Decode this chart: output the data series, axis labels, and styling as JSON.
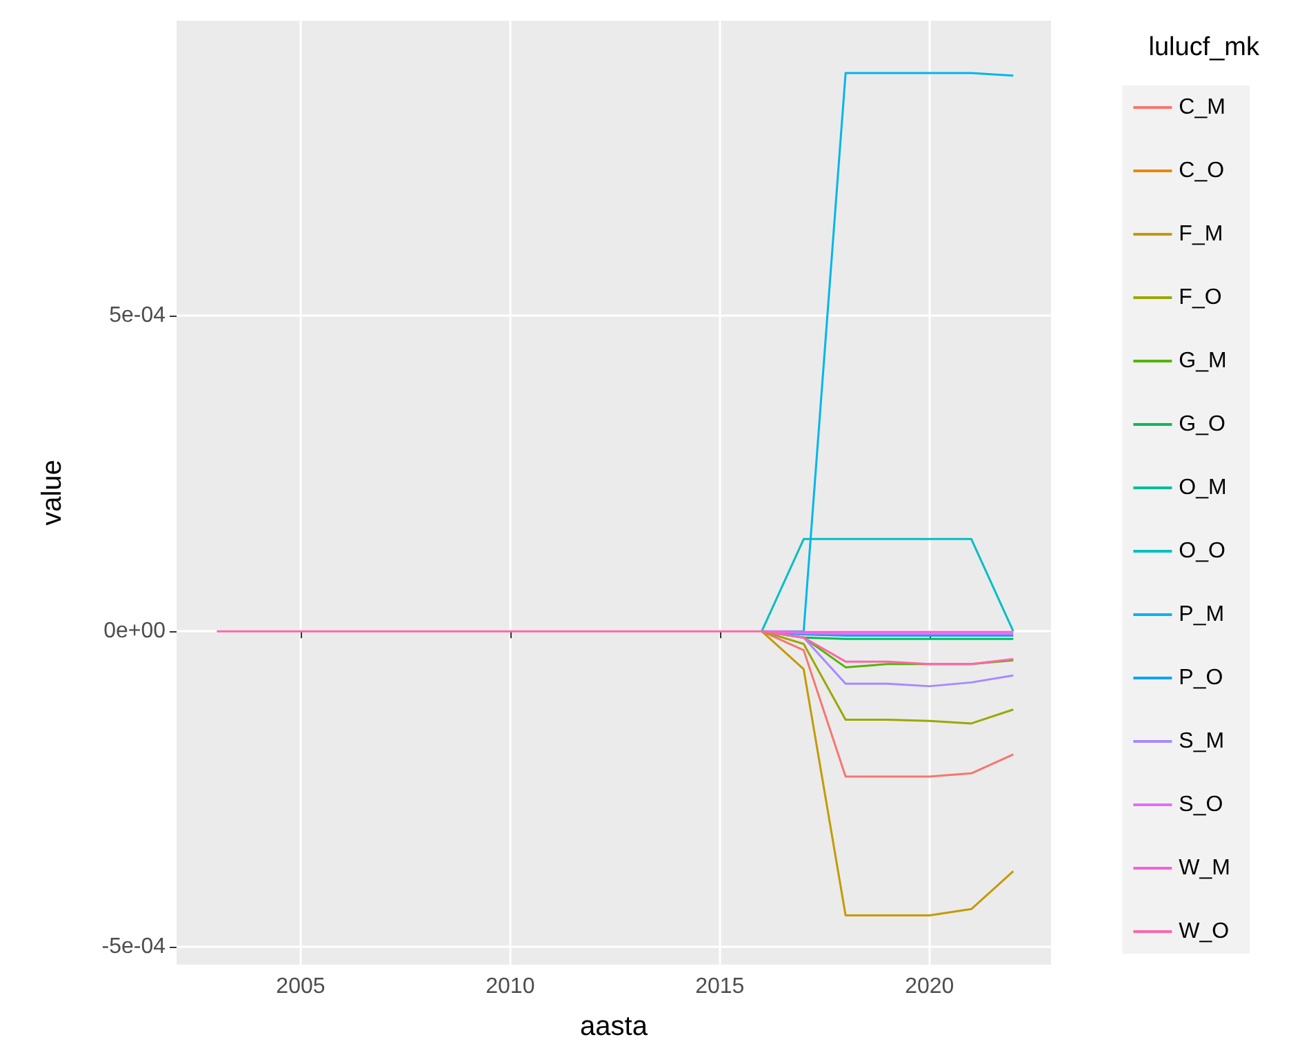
{
  "chart_data": {
    "type": "line",
    "xlabel": "aasta",
    "ylabel": "value",
    "legend_title": "lulucf_mk",
    "legend": "right",
    "grid": true,
    "marker": "none",
    "line_style": "solid",
    "x": [
      2003,
      2004,
      2005,
      2006,
      2007,
      2008,
      2009,
      2010,
      2011,
      2012,
      2013,
      2014,
      2015,
      2016,
      2017,
      2018,
      2019,
      2020,
      2021,
      2022
    ],
    "xlim": [
      2002.04,
      2022.9
    ],
    "xticks": [
      2005,
      2010,
      2015,
      2020
    ],
    "ylim": [
      -0.000528,
      0.000967
    ],
    "yticks": [
      {
        "value": -0.0005,
        "label": "-5e-04"
      },
      {
        "value": 0,
        "label": "0e+00"
      },
      {
        "value": 0.0005,
        "label": "5e-04"
      }
    ],
    "series": [
      {
        "name": "C_M",
        "color": "#f8766d",
        "values": [
          null,
          null,
          null,
          null,
          null,
          null,
          null,
          null,
          null,
          null,
          null,
          null,
          null,
          0,
          -3e-05,
          -0.00023,
          -0.00023,
          -0.00023,
          -0.000225,
          -0.000195
        ]
      },
      {
        "name": "C_O",
        "color": "#e38900",
        "values": [
          null,
          null,
          null,
          null,
          null,
          null,
          null,
          null,
          null,
          null,
          null,
          null,
          null,
          null,
          null,
          null,
          null,
          null,
          null,
          null
        ]
      },
      {
        "name": "F_M",
        "color": "#c49a00",
        "values": [
          null,
          null,
          null,
          null,
          null,
          null,
          null,
          null,
          null,
          null,
          null,
          null,
          null,
          0,
          -6e-05,
          -0.00045,
          -0.00045,
          -0.00045,
          -0.00044,
          -0.00038
        ]
      },
      {
        "name": "F_O",
        "color": "#99a800",
        "values": [
          null,
          null,
          null,
          null,
          null,
          null,
          null,
          null,
          null,
          null,
          null,
          null,
          null,
          0,
          -2e-05,
          -0.00014,
          -0.00014,
          -0.000142,
          -0.000146,
          -0.000124
        ]
      },
      {
        "name": "G_M",
        "color": "#53b400",
        "values": [
          null,
          null,
          null,
          null,
          null,
          null,
          null,
          null,
          null,
          null,
          null,
          null,
          null,
          0,
          -1e-05,
          -5.7e-05,
          -5.2e-05,
          -5.2e-05,
          -5.2e-05,
          -4.6e-05
        ]
      },
      {
        "name": "G_O",
        "color": "#00bc56",
        "values": [
          null,
          null,
          null,
          null,
          null,
          null,
          null,
          null,
          null,
          null,
          null,
          null,
          null,
          0,
          -1e-05,
          -1.2e-05,
          -1.2e-05,
          -1.2e-05,
          -1.2e-05,
          -1.2e-05
        ]
      },
      {
        "name": "O_M",
        "color": "#00c094",
        "values": [
          null,
          null,
          null,
          null,
          null,
          null,
          null,
          null,
          null,
          null,
          null,
          null,
          null,
          null,
          null,
          null,
          null,
          null,
          null,
          null
        ]
      },
      {
        "name": "O_O",
        "color": "#00bfc4",
        "values": [
          null,
          null,
          null,
          null,
          null,
          null,
          null,
          null,
          null,
          null,
          null,
          null,
          null,
          0,
          0.000146,
          0.000146,
          0.000146,
          0.000146,
          0.000146,
          0
        ]
      },
      {
        "name": "P_M",
        "color": "#00b6eb",
        "values": [
          null,
          null,
          null,
          null,
          null,
          null,
          null,
          null,
          null,
          null,
          null,
          null,
          null,
          0,
          0,
          0.000884,
          0.000884,
          0.000884,
          0.000884,
          0.00088
        ]
      },
      {
        "name": "P_O",
        "color": "#06a4ff",
        "values": [
          null,
          null,
          null,
          null,
          null,
          null,
          null,
          null,
          null,
          null,
          null,
          null,
          null,
          0,
          -5e-06,
          -7e-06,
          -7e-06,
          -7e-06,
          -7e-06,
          -7e-06
        ]
      },
      {
        "name": "S_M",
        "color": "#a58aff",
        "values": [
          null,
          null,
          null,
          null,
          null,
          null,
          null,
          null,
          null,
          null,
          null,
          null,
          null,
          0,
          -1e-05,
          -8.3e-05,
          -8.3e-05,
          -8.7e-05,
          -8.1e-05,
          -7e-05
        ]
      },
      {
        "name": "S_O",
        "color": "#df70f8",
        "values": [
          null,
          null,
          null,
          null,
          null,
          null,
          null,
          null,
          null,
          null,
          null,
          null,
          null,
          0,
          -3e-06,
          -4e-06,
          -4e-06,
          -4e-06,
          -4e-06,
          -4e-06
        ]
      },
      {
        "name": "W_M",
        "color": "#fb61d7",
        "values": [
          null,
          null,
          null,
          null,
          null,
          null,
          null,
          null,
          null,
          null,
          null,
          null,
          null,
          0,
          -1e-06,
          -1e-06,
          -1e-06,
          -1e-06,
          -1e-06,
          -1e-06
        ]
      },
      {
        "name": "W_O",
        "color": "#ff66a8",
        "values": [
          0,
          0,
          0,
          0,
          0,
          0,
          0,
          0,
          0,
          0,
          0,
          0,
          0,
          0,
          -1e-05,
          -4.8e-05,
          -4.8e-05,
          -5.2e-05,
          -5.2e-05,
          -4.4e-05
        ]
      }
    ]
  }
}
